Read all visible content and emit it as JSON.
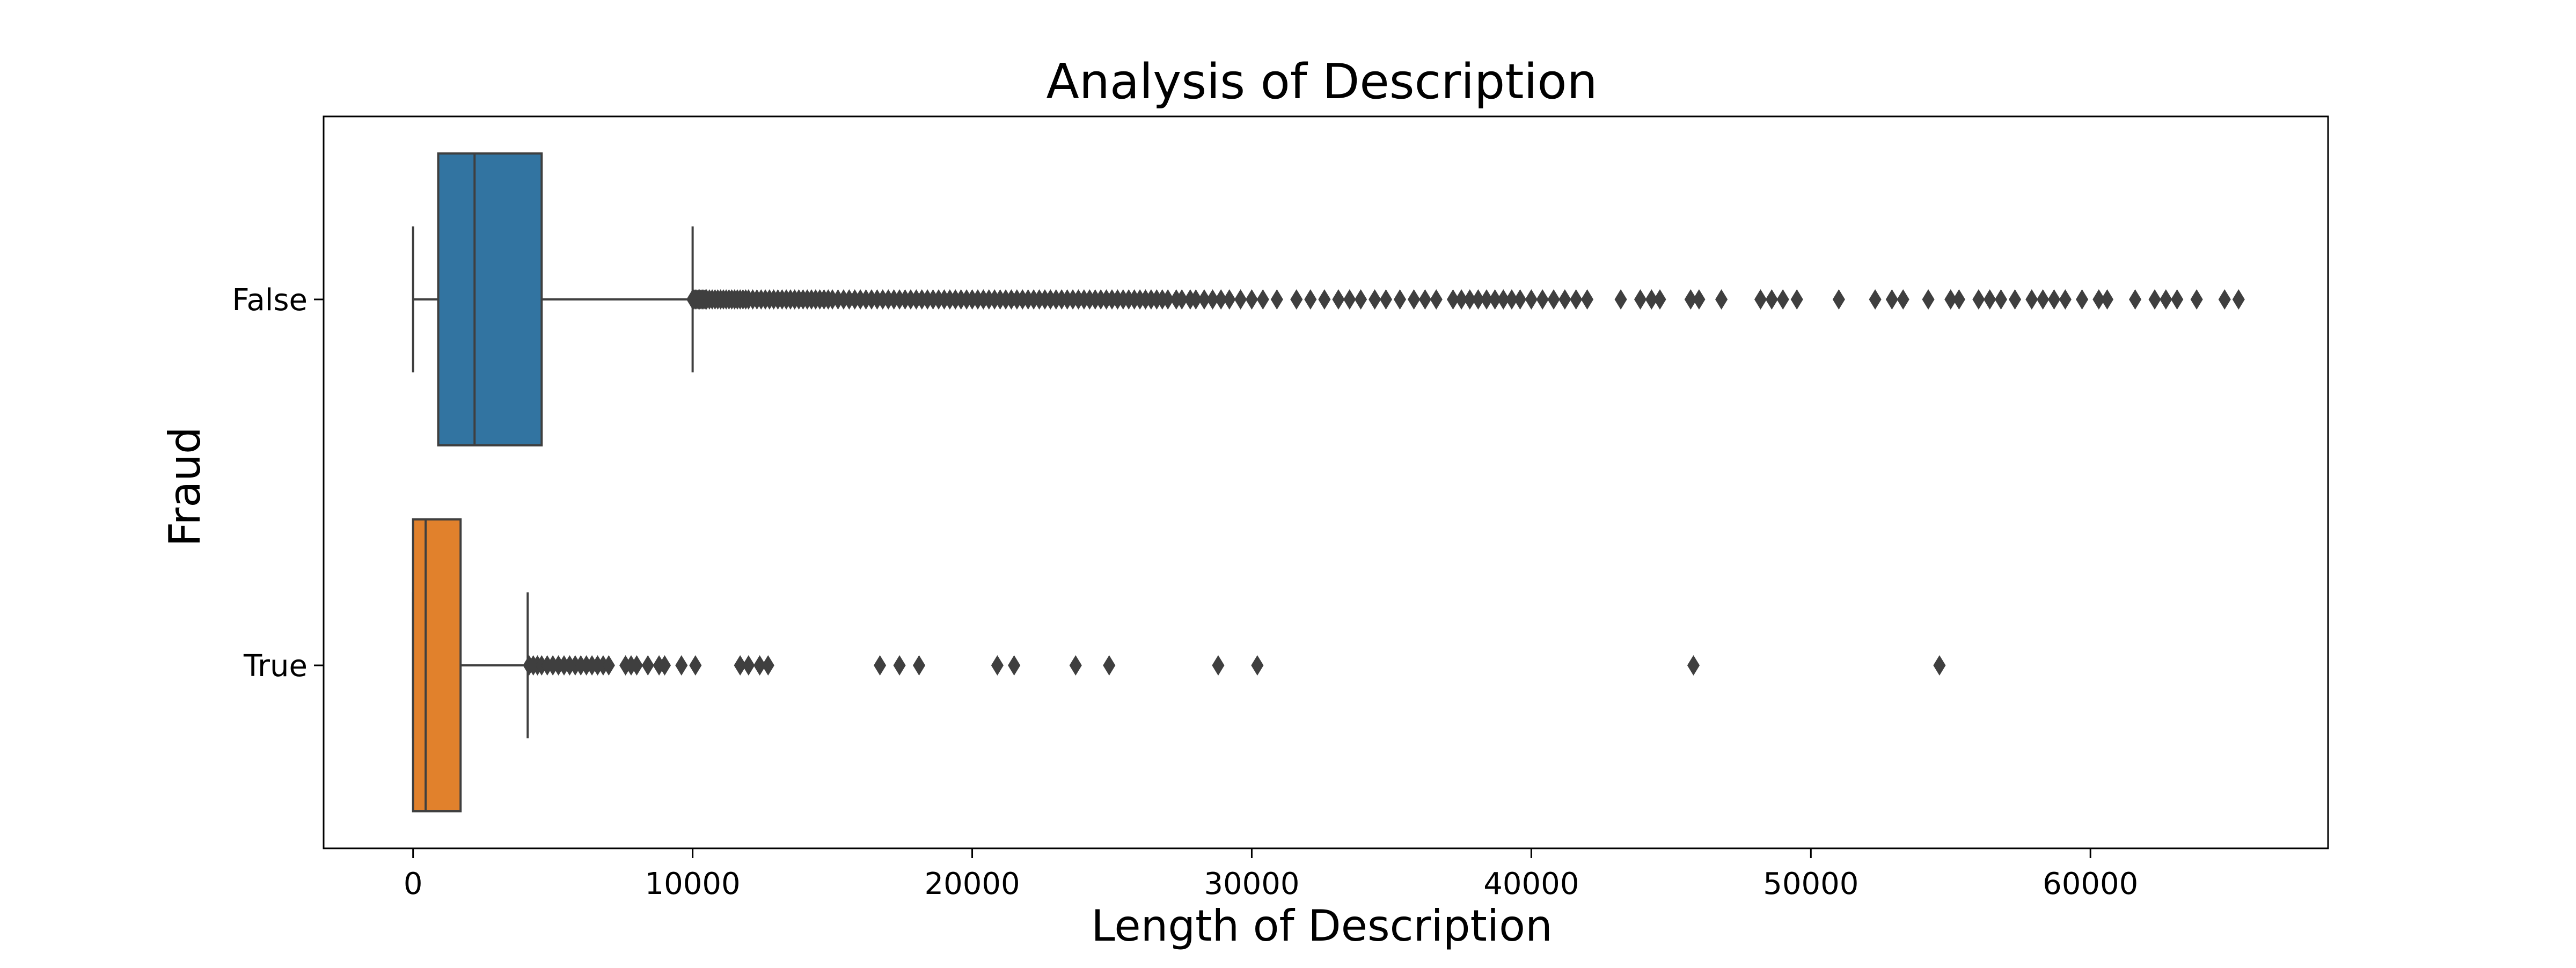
{
  "chart_data": {
    "type": "box",
    "orientation": "horizontal",
    "title": "Analysis of Description",
    "xlabel": "Length of Description",
    "ylabel": "Fraud",
    "xlim": [
      -3200,
      68500
    ],
    "xticks": [
      0,
      10000,
      20000,
      30000,
      40000,
      50000,
      60000
    ],
    "categories": [
      "False",
      "True"
    ],
    "grid": false,
    "legend": "none",
    "series": [
      {
        "category": "False",
        "color": "#3274a1",
        "min": 0,
        "q1": 900,
        "median": 2200,
        "q3": 4600,
        "whisker_high": 10000,
        "outliers": [
          10000,
          10050,
          10100,
          10150,
          10200,
          10250,
          10300,
          10350,
          10400,
          10450,
          10500,
          10600,
          10700,
          10800,
          10900,
          11000,
          11100,
          11200,
          11300,
          11400,
          11500,
          11600,
          11700,
          11800,
          11900,
          12000,
          12150,
          12300,
          12450,
          12600,
          12750,
          12900,
          13050,
          13200,
          13350,
          13500,
          13650,
          13800,
          13950,
          14100,
          14250,
          14400,
          14550,
          14700,
          14850,
          15000,
          15200,
          15400,
          15600,
          15800,
          16000,
          16200,
          16400,
          16600,
          16800,
          17000,
          17200,
          17400,
          17600,
          17800,
          18000,
          18200,
          18400,
          18600,
          18800,
          19000,
          19200,
          19400,
          19600,
          19800,
          20000,
          20200,
          20400,
          20600,
          20800,
          21000,
          21200,
          21400,
          21600,
          21800,
          22000,
          22200,
          22400,
          22600,
          22800,
          23000,
          23200,
          23400,
          23600,
          23800,
          24000,
          24200,
          24400,
          24600,
          24800,
          25000,
          25200,
          25400,
          25600,
          25800,
          26000,
          26200,
          26400,
          26600,
          26800,
          27000,
          27300,
          27500,
          27800,
          28000,
          28300,
          28600,
          28900,
          29200,
          29600,
          30000,
          30400,
          30900,
          31600,
          32100,
          32600,
          33100,
          33500,
          33900,
          34400,
          34800,
          35300,
          35800,
          36200,
          36600,
          37200,
          37500,
          37800,
          38100,
          38400,
          38700,
          39000,
          39300,
          39600,
          40000,
          40400,
          40800,
          41200,
          41600,
          42000,
          43200,
          43900,
          44300,
          44600,
          45700,
          46000,
          46800,
          48200,
          48600,
          49000,
          49500,
          51000,
          52300,
          52900,
          53300,
          54200,
          55000,
          55300,
          56000,
          56400,
          56800,
          57300,
          57900,
          58300,
          58700,
          59100,
          59700,
          60300,
          60600,
          61600,
          62300,
          62700,
          63100,
          63800,
          64800,
          65300
        ]
      },
      {
        "category": "True",
        "color": "#e1812c",
        "min": 0,
        "q1": 0,
        "median": 450,
        "q3": 1700,
        "whisker_high": 4100,
        "outliers": [
          4150,
          4300,
          4450,
          4600,
          4800,
          5000,
          5200,
          5400,
          5600,
          5800,
          6000,
          6200,
          6400,
          6600,
          6800,
          7000,
          7600,
          7800,
          8000,
          8400,
          8800,
          9000,
          9600,
          10100,
          11700,
          12000,
          12400,
          12700,
          16700,
          17400,
          18100,
          20900,
          21500,
          23700,
          24900,
          28800,
          30200,
          45800,
          54600
        ]
      }
    ]
  }
}
